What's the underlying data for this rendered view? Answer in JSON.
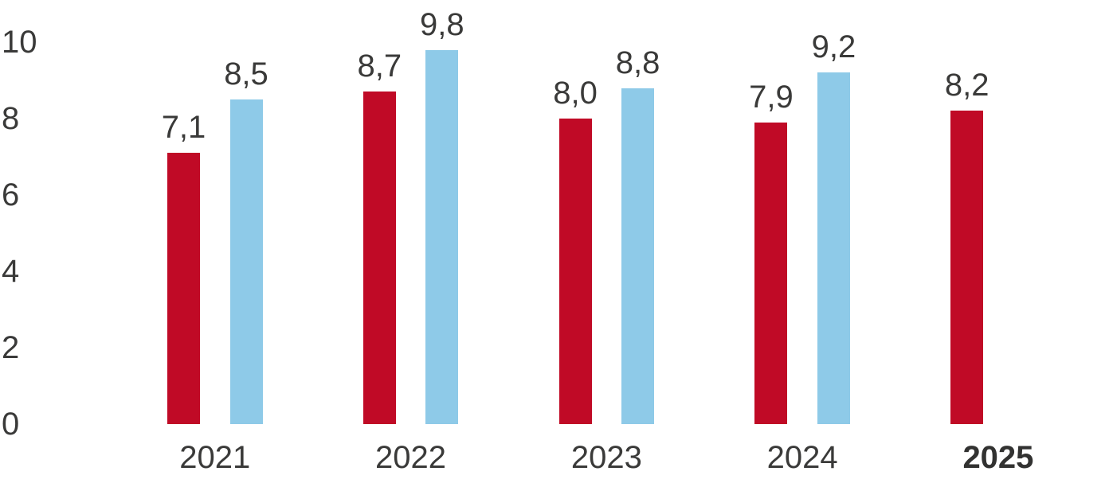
{
  "chart_data": {
    "type": "bar",
    "title": "",
    "xlabel": "",
    "ylabel": "",
    "categories": [
      "2021",
      "2022",
      "2023",
      "2024",
      "2025"
    ],
    "bold_categories": [
      "2025"
    ],
    "series": [
      {
        "name": "series-red",
        "color": "#c00a26",
        "values": [
          7.1,
          8.7,
          8.0,
          7.9,
          8.2
        ],
        "labels": [
          "7,1",
          "8,7",
          "8,0",
          "7,9",
          "8,2"
        ]
      },
      {
        "name": "series-blue",
        "color": "#8ecae8",
        "values": [
          8.5,
          9.8,
          8.8,
          9.2,
          null
        ],
        "labels": [
          "8,5",
          "9,8",
          "8,8",
          "9,2",
          null
        ]
      }
    ],
    "ylim": [
      0,
      10
    ],
    "yticks": [
      0,
      2,
      4,
      6,
      8,
      10
    ],
    "ytick_labels": [
      "0",
      "2",
      "4",
      "6",
      "8",
      "10"
    ],
    "grid": false,
    "legend": "none",
    "axis_lines": "none",
    "decimal_separator": ","
  },
  "colors": {
    "bar_red": "#c00a26",
    "bar_blue": "#8ecae8",
    "text": "#3a3a39",
    "background": "#ffffff"
  }
}
